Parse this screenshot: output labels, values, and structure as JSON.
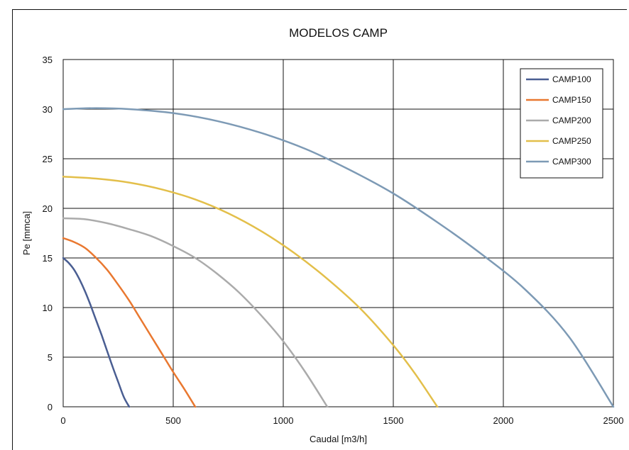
{
  "chart_data": {
    "type": "line",
    "title": "MODELOS CAMP",
    "xlabel": "Caudal [m3/h]",
    "ylabel": "Pe [mmca]",
    "xlim": [
      0,
      2500
    ],
    "ylim": [
      0,
      35
    ],
    "xticks": [
      0,
      500,
      1000,
      1500,
      2000,
      2500
    ],
    "yticks": [
      0,
      5,
      10,
      15,
      20,
      25,
      30,
      35
    ],
    "grid": true,
    "legend_position": "top-right",
    "series": [
      {
        "name": "CAMP100",
        "color": "#4A5E92",
        "x": [
          0,
          25,
          50,
          75,
          100,
          125,
          150,
          175,
          200,
          225,
          250,
          275,
          300
        ],
        "y": [
          15.0,
          14.5,
          13.8,
          12.8,
          11.6,
          10.2,
          8.7,
          7.2,
          5.6,
          4.0,
          2.5,
          1.0,
          0
        ]
      },
      {
        "name": "CAMP150",
        "color": "#E97830",
        "x": [
          0,
          50,
          100,
          150,
          200,
          250,
          300,
          350,
          400,
          450,
          500,
          550,
          600
        ],
        "y": [
          17.0,
          16.6,
          16.0,
          15.0,
          13.8,
          12.3,
          10.7,
          8.9,
          7.1,
          5.3,
          3.5,
          1.8,
          0
        ]
      },
      {
        "name": "CAMP200",
        "color": "#ABABAB",
        "x": [
          0,
          100,
          200,
          300,
          400,
          500,
          600,
          700,
          800,
          900,
          1000,
          1100,
          1200
        ],
        "y": [
          19.0,
          18.9,
          18.5,
          17.9,
          17.2,
          16.2,
          15.0,
          13.4,
          11.5,
          9.2,
          6.6,
          3.5,
          0
        ]
      },
      {
        "name": "CAMP250",
        "color": "#E3BF4A",
        "x": [
          0,
          150,
          300,
          450,
          600,
          750,
          900,
          1050,
          1200,
          1350,
          1500,
          1600,
          1700
        ],
        "y": [
          23.2,
          23.0,
          22.6,
          21.9,
          20.9,
          19.5,
          17.7,
          15.5,
          12.9,
          9.9,
          6.2,
          3.3,
          0
        ]
      },
      {
        "name": "CAMP300",
        "color": "#7D9AB5",
        "x": [
          0,
          150,
          300,
          500,
          700,
          900,
          1100,
          1300,
          1500,
          1700,
          1900,
          2100,
          2300,
          2500
        ],
        "y": [
          30.0,
          30.1,
          30.0,
          29.6,
          28.8,
          27.6,
          26.0,
          23.9,
          21.5,
          18.6,
          15.4,
          11.8,
          7.0,
          0
        ]
      }
    ]
  }
}
